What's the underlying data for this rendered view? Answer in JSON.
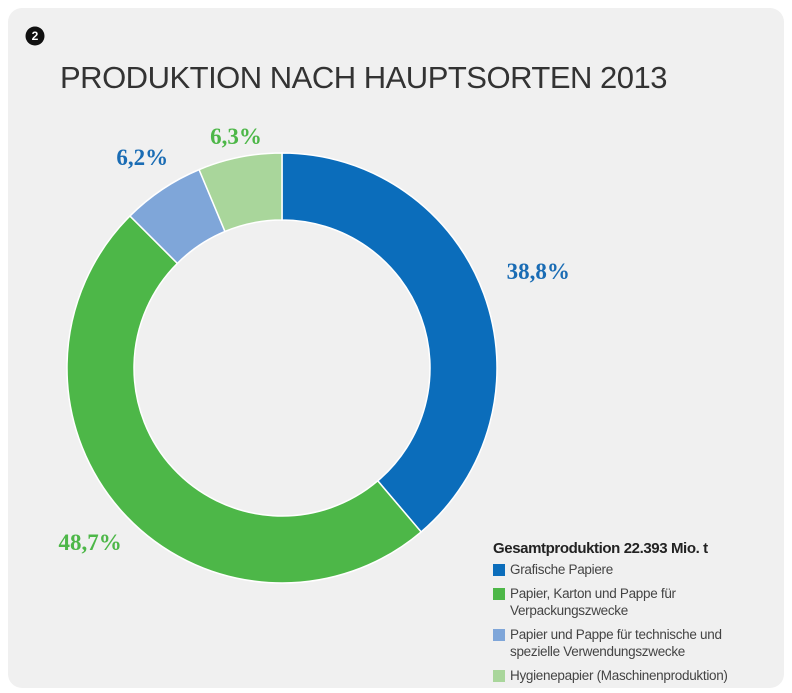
{
  "chart_data": {
    "type": "donut",
    "badge": "2",
    "title": "PRODUKTION NACH HAUPTSORTEN 2013",
    "legend_title": "Gesamtproduktion 22.393 Mio. t",
    "categories": [
      "Grafische Papiere",
      "Papier, Karton und Pappe für Verpackungszwecke",
      "Papier und Pappe für technische und spezielle Verwendungszwecke",
      "Hygienepapier (Maschinenproduktion)"
    ],
    "values": [
      38.8,
      48.7,
      6.2,
      6.3
    ],
    "value_labels": [
      "38,8%",
      "48,7%",
      "6,2%",
      "6,3%"
    ],
    "colors": [
      "#0b6dbb",
      "#4db748",
      "#7fa6d9",
      "#a9d69b"
    ],
    "label_colors": [
      "#1a6cb4",
      "#4db748",
      "#1a6cb4",
      "#4db748"
    ],
    "legend": "bottom-right"
  }
}
